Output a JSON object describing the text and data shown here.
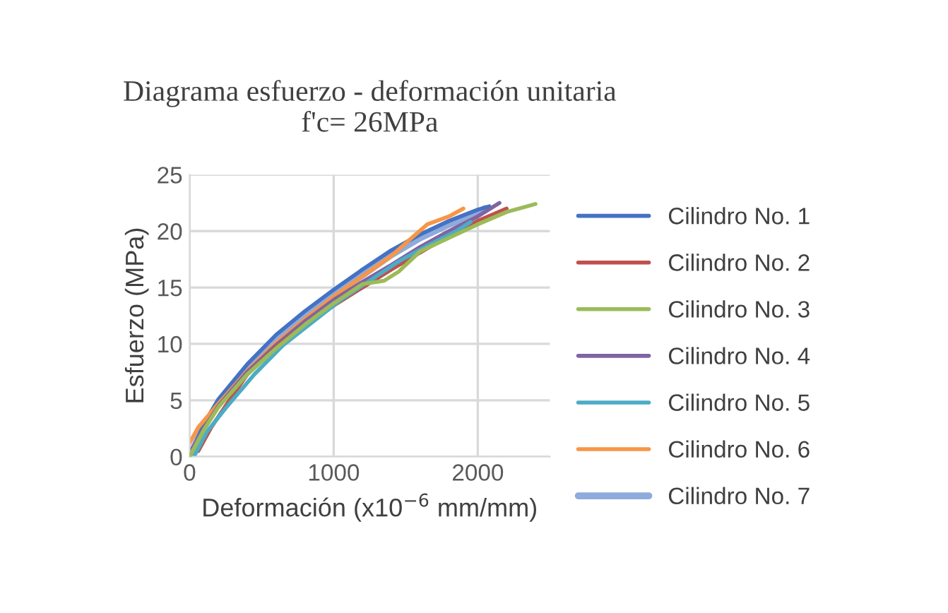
{
  "chart_data": {
    "type": "line",
    "title": "Diagrama esfuerzo - deformación unitaria\nf'c= 26MPa",
    "xlabel": "Deformación (x10$^{−6}$ mm/mm)",
    "ylabel": "Esfuerzo (MPa)",
    "xlim": [
      0,
      2500
    ],
    "xticks": [
      0,
      1000,
      2000
    ],
    "ylim": [
      0,
      25
    ],
    "yticks": [
      0,
      5,
      10,
      15,
      20,
      25
    ],
    "grid": true,
    "legend": "right",
    "marker": "none",
    "line_style": "solid",
    "series": [
      {
        "name": "Cilindro No. 1",
        "color": "#4472c4",
        "x": [
          0,
          100,
          200,
          400,
          600,
          800,
          1000,
          1200,
          1400,
          1600,
          1800,
          2000,
          2080
        ],
        "values": [
          0,
          2.9,
          5.1,
          8.2,
          10.8,
          12.9,
          14.8,
          16.6,
          18.3,
          19.7,
          20.9,
          21.9,
          22.2
        ]
      },
      {
        "name": "Cilindro No. 2",
        "color": "#c0504d",
        "x": [
          60,
          150,
          250,
          400,
          600,
          800,
          1000,
          1200,
          1400,
          1600,
          1800,
          2000,
          2200
        ],
        "values": [
          0.5,
          2.6,
          4.5,
          7.3,
          9.7,
          11.7,
          13.4,
          15.0,
          16.6,
          18.1,
          19.6,
          20.9,
          22.0
        ]
      },
      {
        "name": "Cilindro No. 3",
        "color": "#9bbb59",
        "x": [
          0,
          100,
          200,
          400,
          600,
          800,
          1000,
          1200,
          1350,
          1450,
          1600,
          1800,
          2000,
          2200,
          2400
        ],
        "values": [
          0,
          2.4,
          4.4,
          7.3,
          9.6,
          11.7,
          13.6,
          15.3,
          15.6,
          16.4,
          18.2,
          19.4,
          20.6,
          21.7,
          22.4
        ]
      },
      {
        "name": "Cilindro No. 4",
        "color": "#8064a2",
        "x": [
          0,
          100,
          200,
          400,
          600,
          800,
          1000,
          1200,
          1400,
          1600,
          1800,
          2000,
          2150
        ],
        "values": [
          0.3,
          2.5,
          4.5,
          7.5,
          9.9,
          12.0,
          13.9,
          15.5,
          17.0,
          18.6,
          20.0,
          21.3,
          22.5
        ]
      },
      {
        "name": "Cilindro No. 5",
        "color": "#4bacc6",
        "x": [
          30,
          120,
          250,
          450,
          650,
          850,
          1050,
          1250,
          1450,
          1650,
          1850,
          1950
        ],
        "values": [
          0,
          2.2,
          4.3,
          7.3,
          9.9,
          11.9,
          13.9,
          15.6,
          17.3,
          18.7,
          20.0,
          20.8
        ]
      },
      {
        "name": "Cilindro No. 6",
        "color": "#f79646",
        "x": [
          0,
          60,
          200,
          400,
          600,
          800,
          1000,
          1200,
          1400,
          1550,
          1650,
          1800,
          1900
        ],
        "values": [
          1.2,
          2.6,
          4.7,
          7.6,
          10.1,
          12.2,
          14.2,
          16.0,
          17.8,
          19.5,
          20.6,
          21.3,
          22.0
        ]
      },
      {
        "name": "Cilindro No. 7",
        "color": "#8faadc",
        "x": [
          0,
          100,
          200,
          400,
          600,
          800,
          1000,
          1200,
          1400,
          1600,
          1800,
          2000,
          2050
        ],
        "values": [
          0,
          2.7,
          4.8,
          7.9,
          10.4,
          12.5,
          14.4,
          16.1,
          17.9,
          19.4,
          20.6,
          21.6,
          22.0
        ]
      }
    ]
  }
}
